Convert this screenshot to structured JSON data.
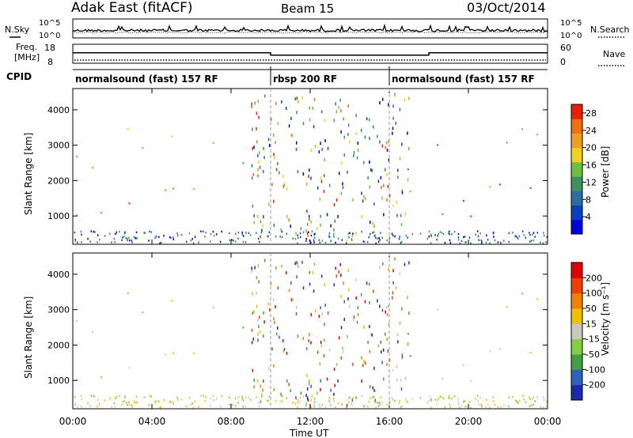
{
  "header": {
    "station": "Adak East (fitACF)",
    "beam": "Beam 15",
    "date": "03/Oct/2014"
  },
  "status_panels": {
    "nsky_label": "N.Sky",
    "nsearch_label": "N.Search",
    "noise_ticks_left": [
      "10^5",
      "10^0"
    ],
    "noise_ticks_right": [
      "10^5",
      "10^0"
    ],
    "freq_label_1": "Freq.",
    "freq_label_2": "[MHz]",
    "freq_ticks": [
      "18",
      "8"
    ],
    "nave_label": "Nave",
    "nave_ticks": [
      "60",
      "0"
    ],
    "cpid_label": "CPID",
    "cpid_segments": [
      {
        "label": "normalsound (fast) 157 RF",
        "start_h": 0,
        "end_h": 10
      },
      {
        "label": "rbsp 200 RF",
        "start_h": 10,
        "end_h": 16
      },
      {
        "label": "normalsound (fast) 157 RF",
        "start_h": 16,
        "end_h": 24
      }
    ]
  },
  "chart_data": [
    {
      "type": "line",
      "name": "frequency",
      "x": [
        0,
        10,
        10,
        18,
        18,
        24
      ],
      "y": [
        13.5,
        13.5,
        12.3,
        12.3,
        13.5,
        13.5
      ],
      "ylim": [
        8,
        18
      ],
      "xlim": [
        0,
        24
      ]
    },
    {
      "type": "heatmap",
      "panel": "power",
      "ylabel": "Slant Range [km]",
      "y_ticks": [
        "1000",
        "2000",
        "3000",
        "4000"
      ],
      "ylim": [
        200,
        4600
      ],
      "xlim": [
        0,
        24
      ],
      "colorbar": {
        "label": "Power [dB]",
        "ticks": [
          "4",
          "8",
          "12",
          "16",
          "20",
          "24",
          "28"
        ],
        "range": [
          0,
          30
        ],
        "colors": [
          "#0000e0",
          "#0a40c0",
          "#2c6ea0",
          "#3f9060",
          "#6cc040",
          "#f0d020",
          "#f0a020",
          "#f07010",
          "#e82000"
        ]
      }
    },
    {
      "type": "heatmap",
      "panel": "velocity",
      "ylabel": "Slant Range [km]",
      "y_ticks": [
        "1000",
        "2000",
        "3000",
        "4000"
      ],
      "ylim": [
        200,
        4600
      ],
      "xlim": [
        0,
        24
      ],
      "colorbar": {
        "label": "Velocity [m s⁻¹]",
        "ticks": [
          "200",
          "100",
          "50",
          "15",
          "-15",
          "-50",
          "-100",
          "-200"
        ],
        "range": [
          -250,
          250
        ],
        "colors": [
          "#1a2ab0",
          "#3060c0",
          "#40a040",
          "#80d040",
          "#c8c8c0",
          "#f0c000",
          "#f08000",
          "#f04000",
          "#e00000"
        ]
      }
    }
  ],
  "x_axis": {
    "ticks": [
      "00:00",
      "04:00",
      "08:00",
      "12:00",
      "16:00",
      "20:00",
      "00:00"
    ],
    "label": "Time UT"
  }
}
